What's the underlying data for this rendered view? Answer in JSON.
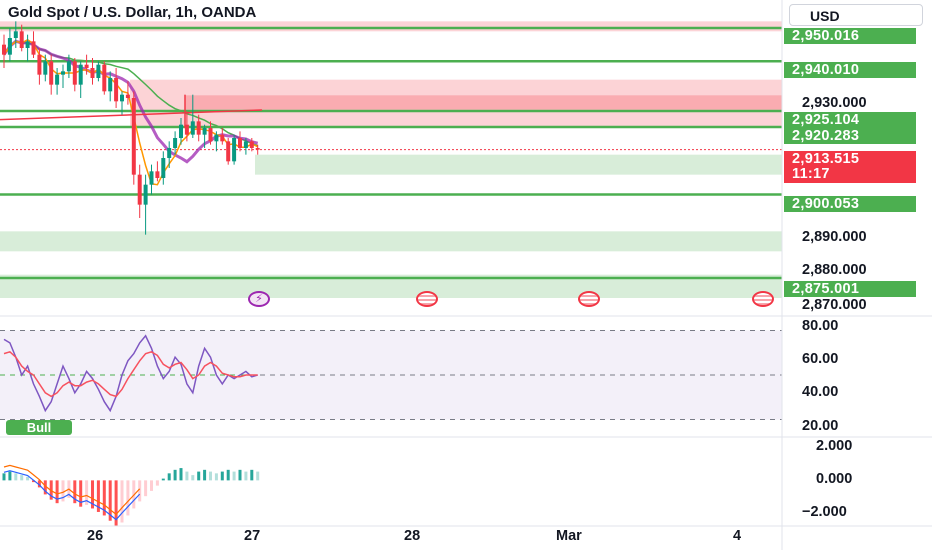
{
  "header": {
    "title": "Gold Spot / U.S. Dollar, 1h, OANDA",
    "currency": "USD"
  },
  "price_axis": {
    "plain_labels": [
      "2,930.000",
      "2,890.000",
      "2,880.000",
      "2,870.000"
    ],
    "level_tags": [
      "2,950.016",
      "2,940.010",
      "2,925.104",
      "2,920.283",
      "2,900.053",
      "2,875.001"
    ],
    "last_price": "2,913.515",
    "countdown": "11:17"
  },
  "rsi_axis": {
    "labels": [
      "80.00",
      "60.00",
      "40.00",
      "20.00"
    ]
  },
  "macd_axis": {
    "labels": [
      "2.000",
      "0.000",
      "−2.000"
    ]
  },
  "time_axis": {
    "labels": [
      "26",
      "27",
      "28",
      "Mar",
      "4"
    ]
  },
  "badges": {
    "bull": "Bull"
  },
  "events": [
    {
      "icon": "lightning-icon"
    },
    {
      "icon": "us-flag-icon"
    },
    {
      "icon": "us-flag-icon"
    },
    {
      "icon": "us-flag-icon"
    }
  ],
  "colors": {
    "up": "#089981",
    "down": "#f23645",
    "level": "#4caf50",
    "rsi": "#7e57c2",
    "signal": "#f7525f",
    "macd_up": "#26a69a",
    "macd_down": "#ff5252",
    "kama": "#9c27b0"
  },
  "chart_data": {
    "type": "candlestick",
    "symbol": "Gold Spot / U.S. Dollar",
    "interval": "1h",
    "source": "OANDA",
    "y_range": [
      2866,
      2956
    ],
    "ohlc": [
      [
        2945,
        2948,
        2938,
        2942
      ],
      [
        2942,
        2950,
        2940,
        2947
      ],
      [
        2947,
        2952,
        2944,
        2949
      ],
      [
        2949,
        2951,
        2943,
        2944
      ],
      [
        2944,
        2948,
        2940,
        2946
      ],
      [
        2946,
        2949,
        2941,
        2942
      ],
      [
        2942,
        2944,
        2933,
        2936
      ],
      [
        2936,
        2942,
        2934,
        2940
      ],
      [
        2940,
        2942,
        2930,
        2933
      ],
      [
        2933,
        2938,
        2930,
        2936
      ],
      [
        2936,
        2939,
        2932,
        2937
      ],
      [
        2937,
        2942,
        2935,
        2940
      ],
      [
        2940,
        2941,
        2931,
        2933
      ],
      [
        2933,
        2940,
        2929,
        2939
      ],
      [
        2939,
        2942,
        2936,
        2938
      ],
      [
        2938,
        2941,
        2933,
        2935
      ],
      [
        2935,
        2940,
        2934,
        2939
      ],
      [
        2939,
        2940,
        2930,
        2931
      ],
      [
        2931,
        2937,
        2928,
        2935
      ],
      [
        2935,
        2938,
        2926,
        2928
      ],
      [
        2928,
        2931,
        2924,
        2930
      ],
      [
        2930,
        2934,
        2927,
        2929
      ],
      [
        2929,
        2931,
        2903,
        2906
      ],
      [
        2906,
        2909,
        2893,
        2897
      ],
      [
        2897,
        2906,
        2888,
        2903
      ],
      [
        2903,
        2909,
        2900,
        2907
      ],
      [
        2907,
        2910,
        2904,
        2905
      ],
      [
        2905,
        2913,
        2903,
        2911
      ],
      [
        2911,
        2916,
        2908,
        2914
      ],
      [
        2914,
        2919,
        2912,
        2917
      ],
      [
        2917,
        2923,
        2915,
        2921
      ],
      [
        2921,
        2925,
        2916,
        2918
      ],
      [
        2918,
        2930,
        2917,
        2922
      ],
      [
        2922,
        2924,
        2916,
        2918
      ],
      [
        2918,
        2921,
        2914,
        2920
      ],
      [
        2920,
        2922,
        2915,
        2916
      ],
      [
        2916,
        2919,
        2913,
        2918
      ],
      [
        2918,
        2920,
        2915,
        2916
      ],
      [
        2916,
        2917,
        2909,
        2910
      ],
      [
        2910,
        2918,
        2909,
        2917
      ],
      [
        2917,
        2919,
        2913,
        2914
      ],
      [
        2914,
        2917,
        2912,
        2916
      ],
      [
        2916,
        2917,
        2913,
        2914
      ],
      [
        2914,
        2915,
        2912,
        2913.5
      ]
    ],
    "levels": [
      2950.016,
      2940.01,
      2925.104,
      2920.283,
      2900.053,
      2875.001
    ],
    "last_price": 2913.515,
    "rsi_bands": [
      75,
      50,
      25
    ],
    "rsi_range": [
      18,
      82
    ],
    "rsi": [
      70,
      68,
      60,
      50,
      55,
      45,
      38,
      30,
      35,
      45,
      55,
      48,
      40,
      45,
      52,
      48,
      42,
      35,
      30,
      38,
      50,
      58,
      62,
      68,
      72,
      65,
      55,
      48,
      52,
      60,
      56,
      45,
      40,
      55,
      65,
      60,
      50,
      45,
      50,
      48,
      50,
      52,
      49,
      50
    ],
    "rsi_signal": [
      62,
      63,
      60,
      55,
      52,
      50,
      45,
      40,
      38,
      40,
      44,
      46,
      44,
      44,
      46,
      47,
      45,
      42,
      39,
      38,
      42,
      48,
      53,
      58,
      62,
      63,
      61,
      56,
      54,
      56,
      57,
      53,
      48,
      50,
      55,
      57,
      55,
      51,
      50,
      49,
      49,
      50,
      50,
      50
    ],
    "macd_range": [
      -2.6,
      2.3
    ],
    "macd_hist": [
      0.4,
      0.5,
      0.4,
      0.3,
      0.2,
      -0.1,
      -0.4,
      -0.8,
      -1.1,
      -1.3,
      -1.2,
      -1.0,
      -1.3,
      -1.5,
      -1.4,
      -1.6,
      -1.8,
      -2.0,
      -2.3,
      -2.6,
      -2.4,
      -2.0,
      -1.6,
      -1.2,
      -0.9,
      -0.6,
      -0.3,
      0.1,
      0.4,
      0.6,
      0.7,
      0.5,
      0.3,
      0.5,
      0.6,
      0.5,
      0.4,
      0.5,
      0.6,
      0.5,
      0.6,
      0.5,
      0.6,
      0.5
    ]
  }
}
